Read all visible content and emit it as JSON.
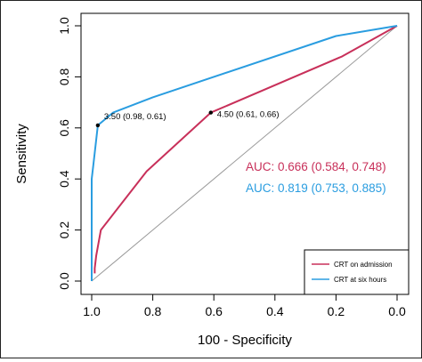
{
  "chart_data": {
    "type": "line",
    "xlabel": "100 - Specificity",
    "ylabel": "Sensitivity",
    "xlim": [
      1.0,
      0.0
    ],
    "ylim": [
      0.0,
      1.0
    ],
    "x_reversed": true,
    "x_ticks": [
      1.0,
      0.8,
      0.6,
      0.4,
      0.2,
      0.0
    ],
    "x_tick_labels": [
      "1.0",
      "0.8",
      "0.6",
      "0.4",
      "0.2",
      "0.0"
    ],
    "y_ticks": [
      0.0,
      0.2,
      0.4,
      0.6,
      0.8,
      1.0
    ],
    "y_tick_labels": [
      "0.0",
      "0.2",
      "0.4",
      "0.6",
      "0.8",
      "1.0"
    ],
    "grid": false,
    "legend_position": "bottom-right",
    "reference_line": {
      "x": [
        1.0,
        0.0
      ],
      "y": [
        0.0,
        1.0
      ],
      "color": "#9a9a9a"
    },
    "series": [
      {
        "name": "CRT on admission",
        "color": "#c8305a",
        "x": [
          0.99,
          0.99,
          0.985,
          0.97,
          0.82,
          0.61,
          0.18,
          0.0
        ],
        "y": [
          0.03,
          0.05,
          0.1,
          0.2,
          0.43,
          0.66,
          0.88,
          1.0
        ]
      },
      {
        "name": "CRT at six hours",
        "color": "#2a9de0",
        "x": [
          1.0,
          1.0,
          0.995,
          0.98,
          0.93,
          0.8,
          0.2,
          0.0
        ],
        "y": [
          0.0,
          0.4,
          0.45,
          0.61,
          0.66,
          0.72,
          0.96,
          1.0
        ]
      }
    ],
    "annotations": [
      {
        "x": 0.98,
        "y": 0.61,
        "text": "3.50 (0.98, 0.61)"
      },
      {
        "x": 0.61,
        "y": 0.66,
        "text": "4.50 (0.61, 0.66)"
      }
    ],
    "auc_labels": [
      {
        "text": "AUC: 0.666 (0.584, 0.748)",
        "color": "#c8305a"
      },
      {
        "text": "AUC: 0.819 (0.753, 0.885)",
        "color": "#2a9de0"
      }
    ]
  }
}
